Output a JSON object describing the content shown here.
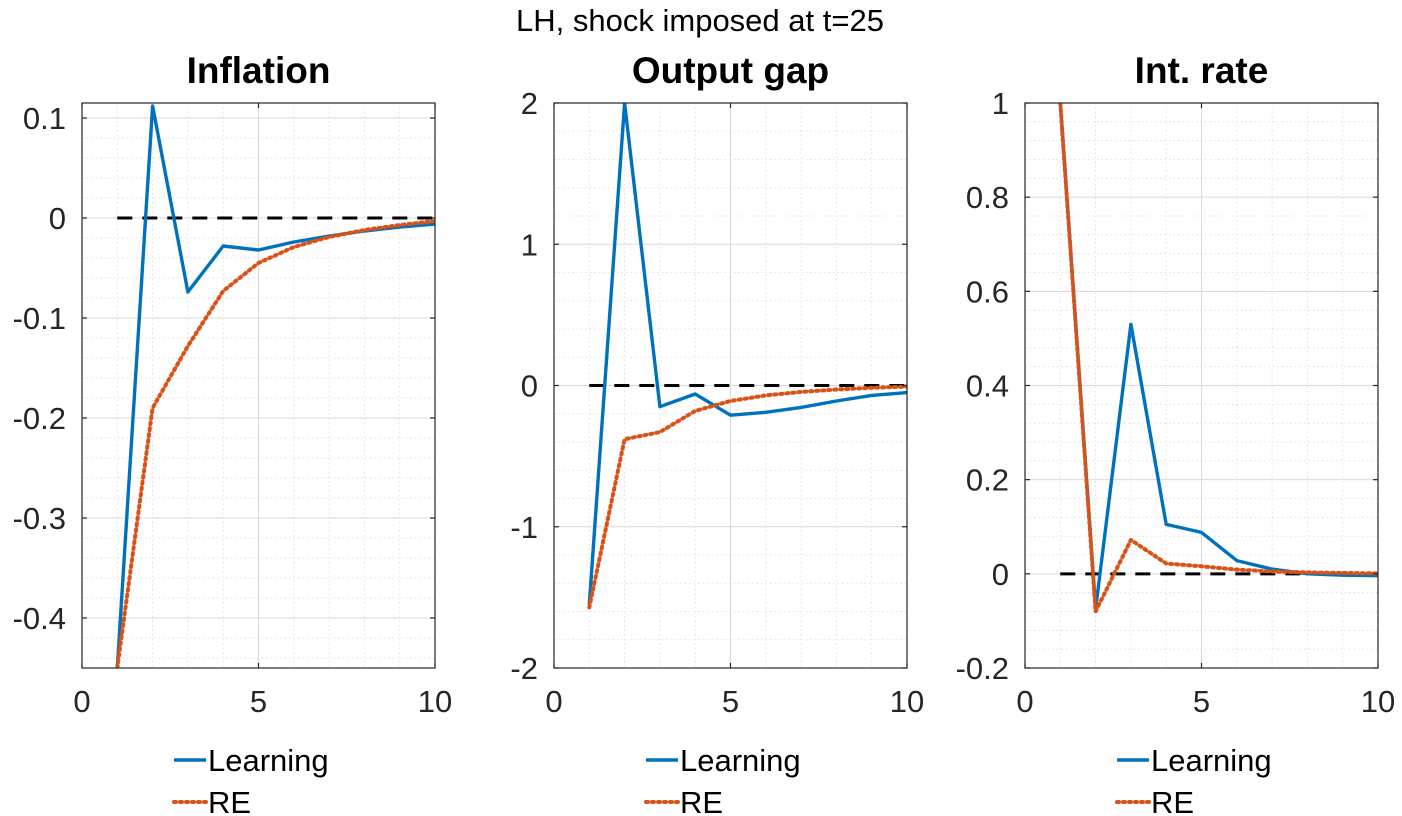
{
  "figure": {
    "suptitle": "LH, shock imposed at t=25",
    "colors": {
      "learning": "#0072BD",
      "re": "#D95319",
      "zero": "#000000",
      "grid": "#d9d9d9",
      "axes": "#262626"
    }
  },
  "chart_data": [
    {
      "type": "line",
      "title": "Inflation",
      "xlabel": "",
      "ylabel": "",
      "xlim": [
        0,
        10
      ],
      "ylim": [
        -0.45,
        0.115
      ],
      "xticks": [
        0,
        5,
        10
      ],
      "xtick_labels": [
        "0",
        "5",
        "10"
      ],
      "yticks": [
        -0.4,
        -0.3,
        -0.2,
        -0.1,
        0,
        0.1
      ],
      "ytick_labels": [
        "-0.4",
        "-0.3",
        "-0.2",
        "-0.1",
        "0",
        "0.1"
      ],
      "grid": true,
      "minor_grid": true,
      "legend": [
        "Learning",
        "RE"
      ],
      "legend_position": "bottom-outside",
      "reference_line": {
        "x": [
          1,
          10
        ],
        "y": 0,
        "style": "dashed"
      },
      "series": [
        {
          "name": "Learning",
          "style": "solid",
          "x": [
            1,
            2,
            3,
            4,
            5,
            6,
            7,
            8,
            9,
            10
          ],
          "y": [
            -0.45,
            0.112,
            -0.074,
            -0.028,
            -0.032,
            -0.024,
            -0.018,
            -0.013,
            -0.009,
            -0.006
          ]
        },
        {
          "name": "RE",
          "style": "dotted",
          "x": [
            1,
            2,
            3,
            4,
            5,
            6,
            7,
            8,
            9,
            10
          ],
          "y": [
            -0.45,
            -0.19,
            -0.128,
            -0.073,
            -0.045,
            -0.029,
            -0.019,
            -0.012,
            -0.007,
            -0.003
          ]
        }
      ]
    },
    {
      "type": "line",
      "title": "Output gap",
      "xlabel": "",
      "ylabel": "",
      "xlim": [
        0,
        10
      ],
      "ylim": [
        -2,
        2
      ],
      "xticks": [
        0,
        5,
        10
      ],
      "xtick_labels": [
        "0",
        "5",
        "10"
      ],
      "yticks": [
        -2,
        -1,
        0,
        1,
        2
      ],
      "ytick_labels": [
        "-2",
        "-1",
        "0",
        "1",
        "2"
      ],
      "grid": true,
      "minor_grid": true,
      "legend": [
        "Learning",
        "RE"
      ],
      "legend_position": "bottom-outside",
      "reference_line": {
        "x": [
          1,
          10
        ],
        "y": 0,
        "style": "dashed"
      },
      "series": [
        {
          "name": "Learning",
          "style": "solid",
          "x": [
            1,
            2,
            3,
            4,
            5,
            6,
            7,
            8,
            9,
            10
          ],
          "y": [
            -1.55,
            2.0,
            -0.15,
            -0.06,
            -0.21,
            -0.19,
            -0.155,
            -0.11,
            -0.07,
            -0.05
          ]
        },
        {
          "name": "RE",
          "style": "dotted",
          "x": [
            1,
            2,
            3,
            4,
            5,
            6,
            7,
            8,
            9,
            10
          ],
          "y": [
            -1.57,
            -0.38,
            -0.33,
            -0.18,
            -0.11,
            -0.07,
            -0.045,
            -0.028,
            -0.016,
            -0.008
          ]
        }
      ]
    },
    {
      "type": "line",
      "title": "Int. rate",
      "xlabel": "",
      "ylabel": "",
      "xlim": [
        0,
        10
      ],
      "ylim": [
        -0.2,
        1
      ],
      "xticks": [
        0,
        5,
        10
      ],
      "xtick_labels": [
        "0",
        "5",
        "10"
      ],
      "yticks": [
        -0.2,
        0,
        0.2,
        0.4,
        0.6,
        0.8,
        1
      ],
      "ytick_labels": [
        "-0.2",
        "0",
        "0.2",
        "0.4",
        "0.6",
        "0.8",
        "1"
      ],
      "grid": true,
      "minor_grid": true,
      "legend": [
        "Learning",
        "RE"
      ],
      "legend_position": "bottom-outside",
      "reference_line": {
        "x": [
          1,
          10
        ],
        "y": 0,
        "style": "dashed"
      },
      "series": [
        {
          "name": "Learning",
          "style": "solid",
          "x": [
            1,
            2,
            3,
            4,
            5,
            6,
            7,
            8,
            9,
            10
          ],
          "y": [
            1.0,
            -0.075,
            0.53,
            0.105,
            0.088,
            0.028,
            0.01,
            0.0,
            -0.003,
            -0.004
          ]
        },
        {
          "name": "RE",
          "style": "dotted",
          "x": [
            1,
            2,
            3,
            4,
            5,
            6,
            7,
            8,
            9,
            10
          ],
          "y": [
            1.0,
            -0.08,
            0.072,
            0.022,
            0.016,
            0.009,
            0.005,
            0.003,
            0.002,
            0.001
          ]
        }
      ]
    }
  ]
}
